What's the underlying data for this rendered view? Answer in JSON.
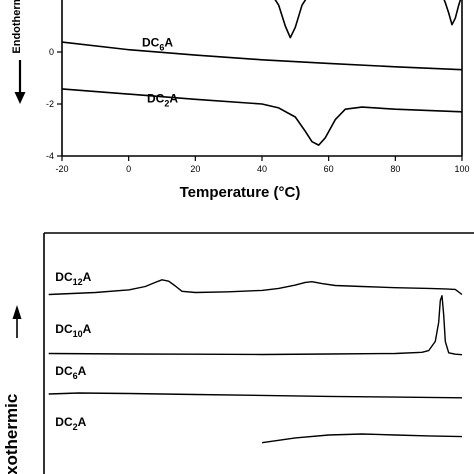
{
  "chart_data": [
    {
      "type": "line",
      "xlabel": "Temperature (°C)",
      "ylabel": "Endothermic",
      "xlim": [
        -20,
        100
      ],
      "ylim": [
        -4,
        2
      ],
      "x_ticks": [
        -20,
        0,
        20,
        40,
        60,
        80,
        100
      ],
      "x_tick_labels": [
        "-20",
        "0",
        "20",
        "40",
        "60",
        "80",
        "100"
      ],
      "y_ticks": [
        0,
        -2,
        -4
      ],
      "y_tick_labels": [
        "0",
        "-2",
        "-4"
      ],
      "series": [
        {
          "name": "DC6A",
          "label_base": "DC",
          "label_sub": "6",
          "label_suffix": "A",
          "label_x": 4,
          "label_y": 0.21,
          "x": [
            -20,
            0,
            20,
            40,
            60,
            80,
            100
          ],
          "y": [
            0.38,
            0.09,
            -0.12,
            -0.3,
            -0.44,
            -0.57,
            -0.68
          ]
        },
        {
          "name": "DC2A",
          "label_base": "DC",
          "label_sub": "2",
          "label_suffix": "A",
          "label_x": 5.5,
          "label_y": -1.95,
          "x": [
            -20,
            0,
            20,
            40,
            45,
            50,
            53,
            55,
            57,
            59,
            62,
            65,
            70,
            80,
            100
          ],
          "y": [
            -1.42,
            -1.62,
            -1.82,
            -2.0,
            -2.15,
            -2.5,
            -3.05,
            -3.45,
            -3.58,
            -3.3,
            -2.6,
            -2.2,
            -2.12,
            -2.2,
            -2.3
          ]
        },
        {
          "name": "top-partial-1",
          "x": [
            43,
            45,
            47,
            48.5,
            50,
            52,
            54
          ],
          "y": [
            2.2,
            1.8,
            1.0,
            0.55,
            0.95,
            1.8,
            2.2
          ]
        },
        {
          "name": "top-partial-2",
          "x": [
            94,
            95,
            96,
            97,
            98,
            99,
            100
          ],
          "y": [
            2.2,
            1.9,
            1.5,
            1.05,
            1.3,
            1.8,
            2.2
          ]
        }
      ]
    },
    {
      "type": "line",
      "ylabel": "Exothermic",
      "xlim": [
        -20,
        100
      ],
      "ylim": [
        0,
        1
      ],
      "series": [
        {
          "name": "DC12A",
          "label_base": "DC",
          "label_sub": "12",
          "label_suffix": "A",
          "label_x": -22,
          "label_y": 0.8,
          "x": [
            -24,
            -10,
            0,
            5,
            8,
            10,
            12,
            14,
            16,
            20,
            30,
            40,
            45,
            50,
            53,
            55,
            58,
            62,
            70,
            80,
            90,
            95,
            98,
            100
          ],
          "y": [
            0.745,
            0.753,
            0.764,
            0.778,
            0.795,
            0.806,
            0.8,
            0.78,
            0.758,
            0.753,
            0.756,
            0.762,
            0.77,
            0.784,
            0.795,
            0.798,
            0.79,
            0.782,
            0.778,
            0.773,
            0.77,
            0.768,
            0.766,
            0.745
          ]
        },
        {
          "name": "DC10A",
          "label_base": "DC",
          "label_sub": "10",
          "label_suffix": "A",
          "label_x": -22,
          "label_y": 0.586,
          "x": [
            -24,
            0,
            20,
            40,
            60,
            80,
            88,
            90,
            92,
            93,
            93.5,
            94,
            94.5,
            95,
            96,
            98,
            100
          ],
          "y": [
            0.5,
            0.498,
            0.497,
            0.496,
            0.498,
            0.5,
            0.505,
            0.512,
            0.55,
            0.63,
            0.72,
            0.74,
            0.66,
            0.55,
            0.503,
            0.497,
            0.495
          ]
        },
        {
          "name": "DC6A",
          "label_base": "DC",
          "label_sub": "6",
          "label_suffix": "A",
          "label_x": -22,
          "label_y": 0.41,
          "x": [
            -24,
            -15,
            0,
            20,
            40,
            60,
            80,
            100
          ],
          "y": [
            0.332,
            0.336,
            0.334,
            0.33,
            0.326,
            0.322,
            0.319,
            0.316
          ]
        },
        {
          "name": "DC2A",
          "label_base": "DC",
          "label_sub": "2",
          "label_suffix": "A",
          "label_x": -22,
          "label_y": 0.2,
          "x": [
            40,
            50,
            60,
            70,
            80,
            90,
            100
          ],
          "y": [
            0.13,
            0.15,
            0.162,
            0.166,
            0.162,
            0.158,
            0.155
          ]
        }
      ]
    }
  ]
}
